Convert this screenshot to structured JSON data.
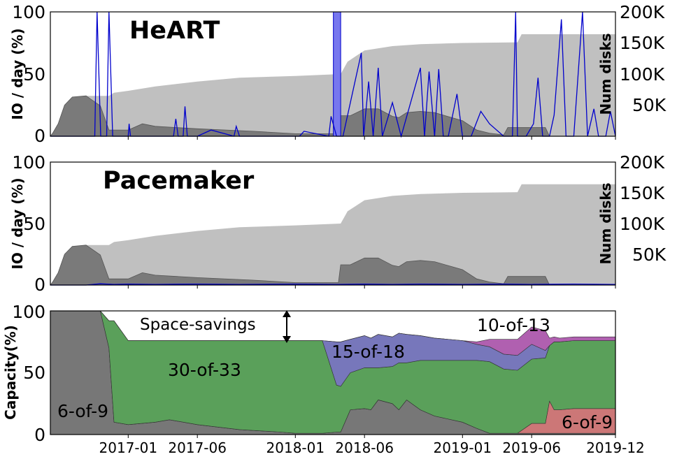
{
  "chart_data": [
    {
      "type": "area",
      "title": "HeART",
      "ylabel_left": "IO / day (%)",
      "ylabel_right": "Num disks",
      "ylim_left": [
        0,
        100
      ],
      "ylim_right": [
        0,
        200000
      ],
      "yticks_left": [
        "0",
        "50",
        "100"
      ],
      "yticks_right": [
        "50K",
        "100K",
        "150K",
        "200K"
      ],
      "xlim": [
        "2016-07-15",
        "2019-12-01"
      ],
      "series": [
        {
          "kind": "disk_count_light",
          "x": [
            "2016-07-15",
            "2016-07-20",
            "2016-08-01",
            "2016-08-15",
            "2016-09-01",
            "2016-10-01",
            "2016-11-01",
            "2016-11-20",
            "2016-12-01",
            "2017-01-01",
            "2017-03-01",
            "2017-06-01",
            "2017-09-01",
            "2018-01-01",
            "2018-04-10",
            "2018-04-25",
            "2018-06-01",
            "2018-08-01",
            "2018-10-01",
            "2019-01-01",
            "2019-05-01",
            "2019-05-10",
            "2019-12-01"
          ],
          "values": [
            0,
            5000,
            20000,
            50000,
            63000,
            65000,
            65000,
            65000,
            70000,
            73000,
            80000,
            88000,
            94000,
            97000,
            100000,
            120000,
            138000,
            145000,
            148000,
            150000,
            151000,
            164000,
            164000
          ]
        },
        {
          "kind": "disk_count_dark",
          "x": [
            "2016-07-15",
            "2016-07-20",
            "2016-08-01",
            "2016-08-15",
            "2016-09-01",
            "2016-10-01",
            "2016-11-01",
            "2016-11-20",
            "2016-12-01",
            "2017-01-01",
            "2017-02-01",
            "2017-03-01",
            "2017-06-01",
            "2017-10-01",
            "2018-01-01",
            "2018-04-05",
            "2018-04-10",
            "2018-05-01",
            "2018-06-01",
            "2018-07-01",
            "2018-08-01",
            "2018-08-15",
            "2018-09-01",
            "2018-10-01",
            "2018-11-01",
            "2019-01-01",
            "2019-02-01",
            "2019-03-01",
            "2019-04-01",
            "2019-04-10",
            "2019-07-01",
            "2019-07-10",
            "2019-12-01"
          ],
          "values": [
            0,
            5000,
            20000,
            50000,
            63000,
            65000,
            49000,
            10000,
            10000,
            10000,
            20000,
            16000,
            12000,
            8000,
            4000,
            4000,
            33000,
            33000,
            44000,
            44000,
            32000,
            30000,
            38000,
            40000,
            38000,
            25000,
            10000,
            5000,
            2000,
            14000,
            14000,
            0,
            0
          ]
        },
        {
          "kind": "io_line",
          "color": "#0000cc",
          "x": [
            "2016-07-15",
            "2016-10-20",
            "2016-10-25",
            "2016-11-02",
            "2016-11-15",
            "2016-11-20",
            "2016-11-28",
            "2016-12-10",
            "2017-01-01",
            "2017-01-03",
            "2017-01-06",
            "2017-03-01",
            "2017-04-10",
            "2017-04-15",
            "2017-04-20",
            "2017-05-01",
            "2017-05-05",
            "2017-05-10",
            "2017-06-01",
            "2017-07-01",
            "2017-08-20",
            "2017-08-25",
            "2017-09-01",
            "2017-09-05",
            "2018-01-10",
            "2018-01-20",
            "2018-03-15",
            "2018-03-20",
            "2018-04-01",
            "2018-04-15",
            "2018-05-25",
            "2018-05-30",
            "2018-06-10",
            "2018-06-20",
            "2018-07-01",
            "2018-07-10",
            "2018-08-01",
            "2018-08-20",
            "2018-10-01",
            "2018-10-10",
            "2018-10-20",
            "2018-11-01",
            "2018-11-10",
            "2018-11-20",
            "2018-12-01",
            "2018-12-20",
            "2019-01-01",
            "2019-01-20",
            "2019-02-10",
            "2019-03-01",
            "2019-04-01",
            "2019-04-20",
            "2019-04-27",
            "2019-05-01",
            "2019-05-20",
            "2019-06-05",
            "2019-06-15",
            "2019-06-25",
            "2019-07-10",
            "2019-07-20",
            "2019-08-05",
            "2019-08-15",
            "2019-08-25",
            "2019-09-01",
            "2019-09-20",
            "2019-10-01",
            "2019-10-15",
            "2019-10-25",
            "2019-11-10",
            "2019-11-20",
            "2019-12-01"
          ],
          "values": [
            0,
            0,
            100,
            0,
            0,
            100,
            0,
            0,
            0,
            10,
            0,
            0,
            0,
            14,
            0,
            0,
            24,
            0,
            0,
            5,
            0,
            8,
            0,
            0,
            0,
            4,
            0,
            16,
            0,
            0,
            67,
            0,
            44,
            0,
            55,
            0,
            27,
            0,
            55,
            0,
            52,
            0,
            54,
            0,
            0,
            34,
            0,
            0,
            20,
            10,
            0,
            0,
            100,
            0,
            0,
            10,
            47,
            0,
            0,
            17,
            94,
            0,
            0,
            0,
            100,
            0,
            22,
            0,
            0,
            20,
            0
          ]
        },
        {
          "kind": "io_spike_band",
          "x_start": "2018-03-25",
          "x_end": "2018-04-10",
          "value": 100,
          "color": "#7777ee"
        }
      ]
    },
    {
      "type": "area",
      "title": "Pacemaker",
      "ylabel_left": "IO / day (%)",
      "ylabel_right": "Num disks",
      "ylim_left": [
        0,
        100
      ],
      "ylim_right": [
        0,
        200000
      ],
      "yticks_left": [
        "0",
        "50",
        "100"
      ],
      "yticks_right": [
        "50K",
        "100K",
        "150K",
        "200K"
      ],
      "xlim": [
        "2016-07-15",
        "2019-12-01"
      ],
      "series": [
        {
          "kind": "disk_count_light",
          "x": [
            "2016-07-15",
            "2016-07-20",
            "2016-08-01",
            "2016-08-15",
            "2016-09-01",
            "2016-10-01",
            "2016-11-01",
            "2016-11-20",
            "2016-12-01",
            "2017-01-01",
            "2017-03-01",
            "2017-06-01",
            "2017-09-01",
            "2018-01-01",
            "2018-04-10",
            "2018-04-25",
            "2018-06-01",
            "2018-08-01",
            "2018-10-01",
            "2019-01-01",
            "2019-05-01",
            "2019-05-10",
            "2019-12-01"
          ],
          "values": [
            0,
            5000,
            20000,
            50000,
            63000,
            65000,
            65000,
            65000,
            70000,
            73000,
            80000,
            88000,
            94000,
            97000,
            100000,
            120000,
            138000,
            145000,
            148000,
            150000,
            151000,
            164000,
            164000
          ]
        },
        {
          "kind": "disk_count_dark",
          "x": [
            "2016-07-15",
            "2016-07-20",
            "2016-08-01",
            "2016-08-15",
            "2016-09-01",
            "2016-10-01",
            "2016-11-01",
            "2016-11-20",
            "2016-12-01",
            "2017-01-01",
            "2017-02-01",
            "2017-03-01",
            "2017-06-01",
            "2017-10-01",
            "2018-01-01",
            "2018-04-05",
            "2018-04-10",
            "2018-05-01",
            "2018-06-01",
            "2018-07-01",
            "2018-08-01",
            "2018-08-15",
            "2018-09-01",
            "2018-10-01",
            "2018-11-01",
            "2019-01-01",
            "2019-02-01",
            "2019-03-01",
            "2019-04-01",
            "2019-04-10",
            "2019-07-01",
            "2019-07-10",
            "2019-12-01"
          ],
          "values": [
            0,
            5000,
            20000,
            50000,
            63000,
            65000,
            49000,
            10000,
            10000,
            10000,
            20000,
            16000,
            12000,
            8000,
            4000,
            4000,
            33000,
            33000,
            44000,
            44000,
            32000,
            30000,
            38000,
            40000,
            38000,
            25000,
            10000,
            5000,
            2000,
            14000,
            14000,
            0,
            0
          ]
        },
        {
          "kind": "io_line",
          "color": "#0000cc",
          "x": [
            "2016-07-15",
            "2016-10-01",
            "2016-11-01",
            "2016-12-01",
            "2017-01-01",
            "2017-03-01",
            "2017-06-01",
            "2017-09-01",
            "2018-01-01",
            "2018-04-01",
            "2018-06-01",
            "2018-08-01",
            "2018-10-01",
            "2019-01-01",
            "2019-04-01",
            "2019-06-01",
            "2019-09-01",
            "2019-12-01"
          ],
          "values": [
            0,
            0,
            1,
            0.5,
            0.8,
            0.5,
            0.8,
            0.5,
            0.8,
            0.5,
            0.8,
            0.5,
            0.8,
            0.5,
            0.8,
            0.5,
            0.8,
            0.5
          ]
        }
      ]
    },
    {
      "type": "area",
      "ylabel": "Capacity(%)",
      "ylim": [
        0,
        100
      ],
      "yticks": [
        "0",
        "50",
        "100"
      ],
      "xlim": [
        "2016-07-15",
        "2019-12-01"
      ],
      "xticks": [
        "2017-01",
        "2017-06",
        "2018-01",
        "2018-06",
        "2019-01",
        "2019-06",
        "2019-12"
      ],
      "x": [
        "2016-07-15",
        "2016-10-25",
        "2016-11-01",
        "2016-11-20",
        "2016-12-01",
        "2017-01-01",
        "2017-03-01",
        "2017-04-01",
        "2017-06-01",
        "2017-09-01",
        "2017-12-01",
        "2018-01-01",
        "2018-02-01",
        "2018-03-01",
        "2018-04-01",
        "2018-04-10",
        "2018-05-01",
        "2018-06-01",
        "2018-06-15",
        "2018-07-01",
        "2018-08-01",
        "2018-08-15",
        "2018-09-01",
        "2018-10-01",
        "2018-11-01",
        "2019-01-01",
        "2019-02-01",
        "2019-03-01",
        "2019-04-01",
        "2019-05-01",
        "2019-06-01",
        "2019-07-01",
        "2019-07-10",
        "2019-07-20",
        "2019-08-01",
        "2019-09-01",
        "2019-10-01",
        "2019-12-01"
      ],
      "series": [
        {
          "name": "6-of-9",
          "color": "#777777",
          "values": [
            100,
            100,
            100,
            70,
            10,
            8,
            10,
            12,
            8,
            4,
            2,
            1,
            1,
            1,
            2,
            2,
            20,
            21,
            20,
            28,
            25,
            20,
            28,
            20,
            15,
            10,
            5,
            1,
            1,
            1,
            1,
            1,
            1,
            1,
            1,
            1,
            1,
            1
          ]
        },
        {
          "name": "6-of-9",
          "color": "#cc7777",
          "values": [
            0,
            0,
            0,
            0,
            0,
            0,
            0,
            0,
            0,
            0,
            0,
            0,
            0,
            0,
            0,
            0,
            0,
            0,
            0,
            0,
            0,
            0,
            0,
            0,
            0,
            0,
            0,
            0,
            0,
            0,
            8,
            8,
            26,
            19,
            19,
            20,
            20,
            20
          ]
        },
        {
          "name": "30-of-33",
          "color": "#5aa05a",
          "values": [
            0,
            0,
            0,
            22,
            82,
            68,
            66,
            64,
            68,
            72,
            74,
            75,
            75,
            75,
            38,
            37,
            30,
            33,
            34,
            26,
            30,
            38,
            30,
            40,
            45,
            50,
            55,
            58,
            52,
            51,
            52,
            53,
            45,
            55,
            55,
            55,
            55,
            55
          ]
        },
        {
          "name": "15-of-18",
          "color": "#7777bb",
          "values": [
            0,
            0,
            0,
            0,
            0,
            0,
            0,
            0,
            0,
            0,
            0,
            0,
            0,
            0,
            35,
            36,
            27,
            26,
            24,
            27,
            24,
            24,
            23,
            20,
            18,
            16,
            13,
            12,
            12,
            12,
            12,
            6,
            0,
            0,
            0,
            0,
            0,
            0
          ]
        },
        {
          "name": "10-of-13",
          "color": "#b060b0",
          "values": [
            0,
            0,
            0,
            0,
            0,
            0,
            0,
            0,
            0,
            0,
            0,
            0,
            0,
            0,
            0,
            0,
            0,
            0,
            0,
            0,
            0,
            0,
            0,
            0,
            0,
            0,
            2,
            6,
            12,
            13,
            14,
            16,
            6,
            4,
            3,
            3,
            3,
            3
          ]
        }
      ],
      "annotation": "Space-savings",
      "region_labels": [
        "6-of-9",
        "30-of-33",
        "15-of-18",
        "10-of-13",
        "6-of-9"
      ]
    }
  ]
}
